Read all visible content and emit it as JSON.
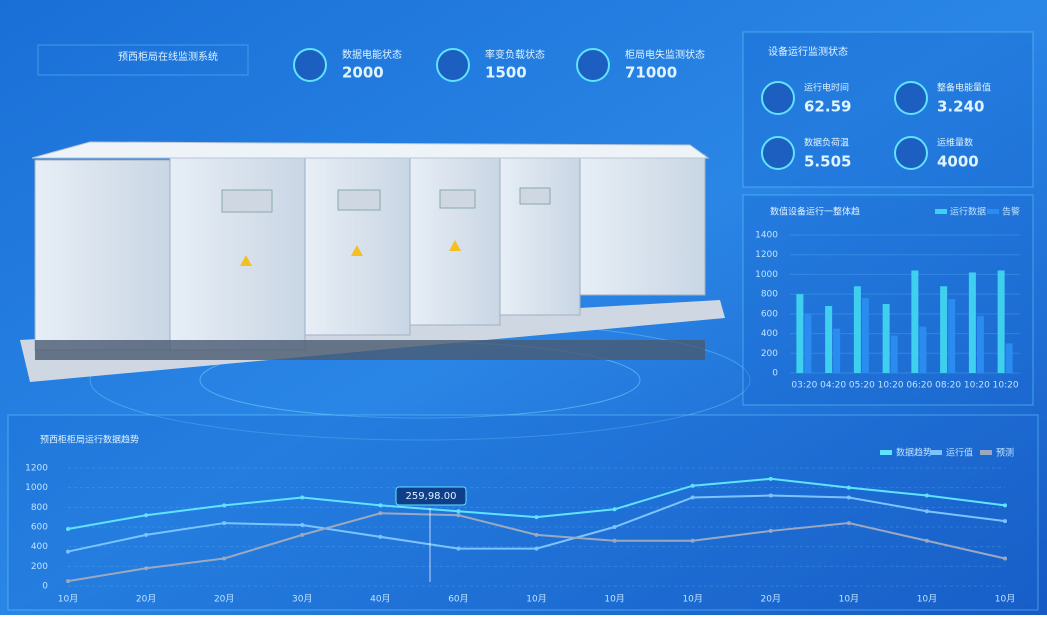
{
  "header": {
    "title": "预西柜局在线监测系统"
  },
  "stats": [
    {
      "label": "数据电能状态",
      "value": "2000"
    },
    {
      "label": "率变负载状态",
      "value": "1500"
    },
    {
      "label": "柜局电失监测状态",
      "value": "71000"
    }
  ],
  "status_panel": {
    "title": "设备运行监测状态",
    "items": [
      {
        "label": "运行电时间",
        "value": "62.59"
      },
      {
        "label": "整备电能量值",
        "value": "3.240"
      },
      {
        "label": "数据负荷温",
        "value": "5.505"
      },
      {
        "label": "运维量数",
        "value": "4000"
      }
    ]
  },
  "chart_data": [
    {
      "type": "bar",
      "title": "数值设备运行一整体趋",
      "categories": [
        "03:20",
        "04:20",
        "05:20",
        "10:20",
        "06:20",
        "08:20",
        "10:20",
        "10:20"
      ],
      "series": [
        {
          "name": "运行数据",
          "color": "#3fd0f0",
          "values": [
            800,
            680,
            880,
            700,
            1040,
            880,
            1020,
            1040
          ]
        },
        {
          "name": "告警",
          "color": "#2a8cf0",
          "values": [
            600,
            450,
            760,
            380,
            470,
            750,
            580,
            300
          ]
        }
      ],
      "ylim": [
        0,
        1400
      ],
      "yticks": [
        0,
        200,
        400,
        600,
        800,
        1000,
        1200,
        1400
      ]
    },
    {
      "type": "line",
      "title": "预西柜柜局运行数据趋势",
      "annotation": "259,98.00",
      "categories": [
        "10月",
        "20月",
        "20月",
        "30月",
        "40月",
        "60月",
        "10月",
        "10月",
        "10月",
        "20月",
        "10月",
        "10月",
        "10月"
      ],
      "series": [
        {
          "name": "数据趋势",
          "color": "#5fe3ff",
          "values": [
            580,
            720,
            820,
            900,
            820,
            760,
            700,
            780,
            1020,
            1090,
            1000,
            920,
            820
          ]
        },
        {
          "name": "运行值",
          "color": "#7cc4ff",
          "values": [
            350,
            520,
            640,
            620,
            500,
            380,
            380,
            600,
            900,
            920,
            900,
            760,
            660
          ]
        },
        {
          "name": "预测",
          "color": "#9aa9c0",
          "values": [
            50,
            180,
            280,
            520,
            740,
            720,
            520,
            460,
            460,
            560,
            640,
            460,
            280
          ]
        }
      ],
      "ylim": [
        0,
        1200
      ],
      "yticks": [
        0,
        200,
        400,
        600,
        800,
        1000,
        1200
      ]
    }
  ]
}
